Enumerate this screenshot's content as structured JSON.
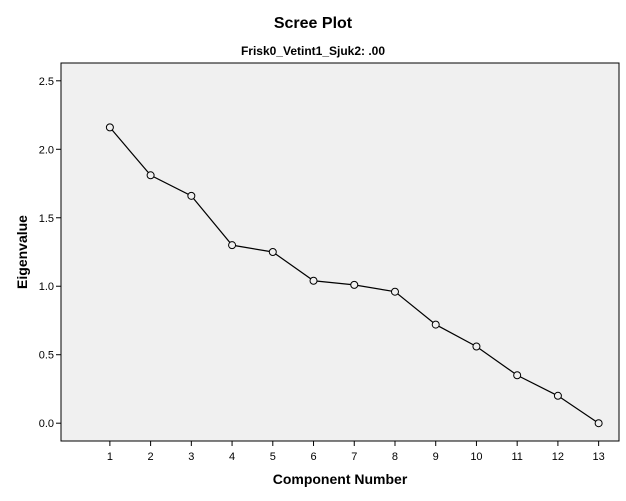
{
  "chart_data": {
    "type": "line",
    "title": "Scree Plot",
    "subtitle": "Frisk0_Vetint1_Sjuk2: .00",
    "xlabel": "Component Number",
    "ylabel": "Eigenvalue",
    "x": [
      1,
      2,
      3,
      4,
      5,
      6,
      7,
      8,
      9,
      10,
      11,
      12,
      13
    ],
    "x_tick_labels": [
      "1",
      "2",
      "3",
      "4",
      "5",
      "6",
      "7",
      "8",
      "9",
      "10",
      "11",
      "12",
      "13"
    ],
    "y_ticks": [
      0.0,
      0.5,
      1.0,
      1.5,
      2.0,
      2.5
    ],
    "y_tick_labels": [
      "0.0",
      "0.5",
      "1.0",
      "1.5",
      "2.0",
      "2.5"
    ],
    "series": [
      {
        "values": [
          2.16,
          1.81,
          1.66,
          1.3,
          1.25,
          1.04,
          1.01,
          0.96,
          0.72,
          0.56,
          0.35,
          0.2,
          0.0
        ]
      }
    ],
    "xlim": [
      -0.2,
      13.5
    ],
    "ylim": [
      -0.13,
      2.63
    ],
    "grid": false,
    "marker": "open-circle",
    "colors": {
      "plot_background": "#f0f0f0",
      "line": "#000000",
      "marker_fill": "#f0f0f0"
    }
  }
}
